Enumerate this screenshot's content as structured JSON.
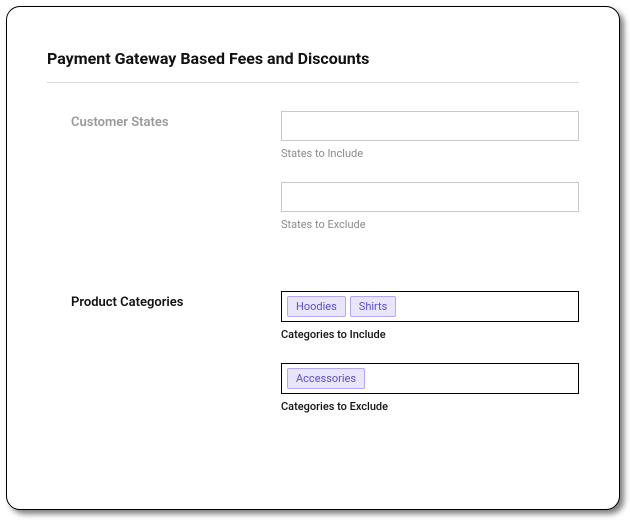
{
  "title": "Payment Gateway Based Fees and Discounts",
  "sections": {
    "customerStates": {
      "label": "Customer States",
      "include": {
        "helper": "States to Include",
        "tags": []
      },
      "exclude": {
        "helper": "States to Exclude",
        "tags": []
      }
    },
    "productCategories": {
      "label": "Product Categories",
      "include": {
        "helper": "Categories to Include",
        "tags": [
          "Hoodies",
          "Shirts"
        ]
      },
      "exclude": {
        "helper": "Categories to Exclude",
        "tags": [
          "Accessories"
        ]
      }
    }
  },
  "styling": {
    "card_border_radius": 14,
    "card_border_color": "#000000",
    "card_shadow": "4px 4px 6px rgba(0,0,0,0.5)",
    "tag_bg": "#e9e6fb",
    "tag_border": "#b4a8ee",
    "tag_text": "#5b4fc9",
    "input_border": "#c9c9c9",
    "input_border_active": "#000000",
    "muted_text": "#9a9a9a",
    "helper_text": "#8a8a8a",
    "divider_color": "#d8d8d8",
    "title_fontsize": 16,
    "label_fontsize": 13,
    "helper_fontsize": 11,
    "tag_fontsize": 11
  }
}
